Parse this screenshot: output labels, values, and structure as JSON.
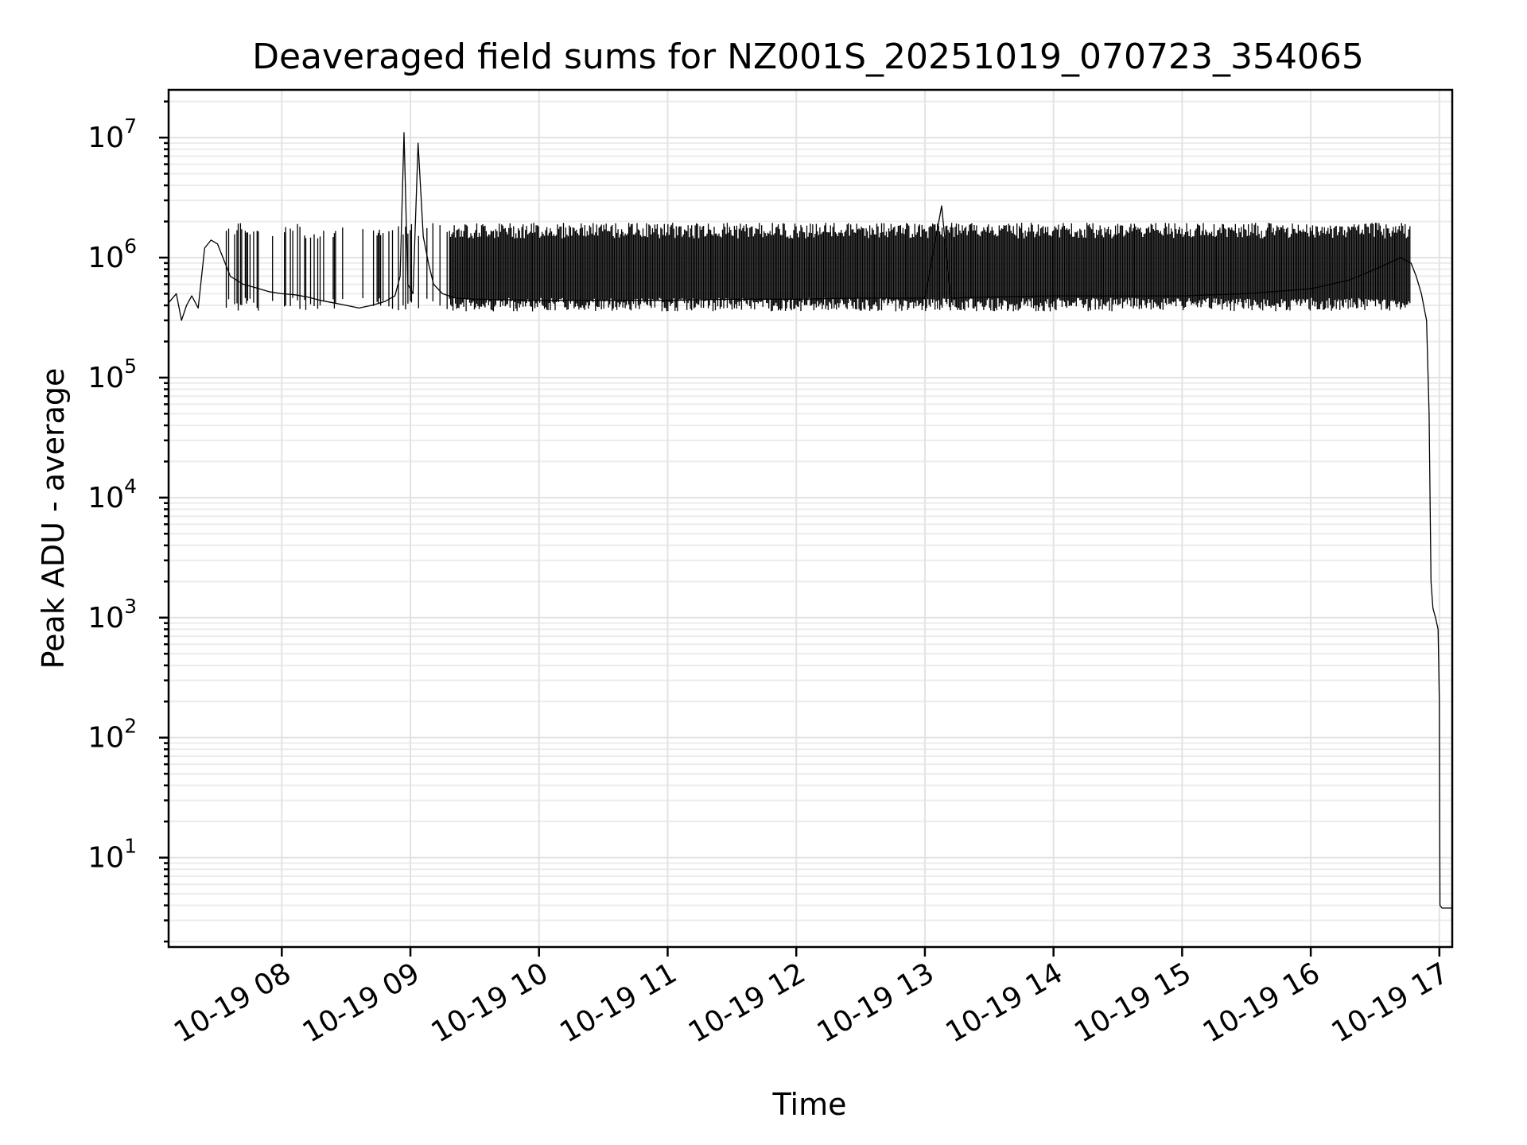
{
  "chart_data": {
    "type": "line",
    "title": "Deaveraged field sums for NZ001S_20251019_070723_354065",
    "xlabel": "Time",
    "ylabel": "Peak ADU - average",
    "yscale": "log",
    "ylim": [
      1.8,
      25000000
    ],
    "xlim_hours": [
      7.12,
      17.1
    ],
    "grid": true,
    "x_tick_hours": [
      8,
      9,
      10,
      11,
      12,
      13,
      14,
      15,
      16,
      17
    ],
    "x_tick_labels": [
      "10-19 08",
      "10-19 09",
      "10-19 10",
      "10-19 11",
      "10-19 12",
      "10-19 13",
      "10-19 14",
      "10-19 15",
      "10-19 16",
      "10-19 17"
    ],
    "y_ticks": [
      {
        "value": 10,
        "base": "10",
        "exp": "1"
      },
      {
        "value": 100,
        "base": "10",
        "exp": "2"
      },
      {
        "value": 1000,
        "base": "10",
        "exp": "3"
      },
      {
        "value": 10000,
        "base": "10",
        "exp": "4"
      },
      {
        "value": 100000,
        "base": "10",
        "exp": "5"
      },
      {
        "value": 1000000,
        "base": "10",
        "exp": "6"
      },
      {
        "value": 10000000,
        "base": "10",
        "exp": "7"
      }
    ],
    "series": [
      {
        "name": "Peak ADU - average",
        "color": "#000000",
        "x_hours": [
          7.12,
          7.18,
          7.22,
          7.26,
          7.3,
          7.35,
          7.4,
          7.45,
          7.5,
          7.6,
          7.7,
          7.8,
          7.9,
          8.0,
          8.1,
          8.2,
          8.3,
          8.4,
          8.5,
          8.6,
          8.7,
          8.8,
          8.88,
          8.92,
          8.95,
          8.98,
          9.02,
          9.06,
          9.1,
          9.14,
          9.18,
          9.25,
          9.35,
          9.5,
          10.0,
          10.5,
          11.0,
          11.5,
          12.0,
          12.5,
          13.0,
          13.13,
          13.2,
          13.5,
          14.0,
          14.5,
          15.0,
          15.5,
          16.0,
          16.3,
          16.5,
          16.7,
          16.78,
          16.82,
          16.86,
          16.9,
          16.92,
          16.935,
          16.95,
          16.97,
          16.99,
          17.0,
          17.005,
          17.02,
          17.1
        ],
        "values": [
          420000,
          500000,
          300000,
          400000,
          480000,
          380000,
          1200000,
          1400000,
          1300000,
          700000,
          600000,
          560000,
          520000,
          500000,
          490000,
          470000,
          440000,
          420000,
          400000,
          380000,
          400000,
          430000,
          480000,
          700000,
          11000000,
          600000,
          500000,
          9000000,
          1500000,
          900000,
          600000,
          500000,
          460000,
          450000,
          440000,
          440000,
          440000,
          450000,
          450000,
          460000,
          460000,
          2700000,
          460000,
          470000,
          480000,
          480000,
          480000,
          500000,
          550000,
          650000,
          800000,
          1000000,
          900000,
          700000,
          500000,
          300000,
          50000,
          2000,
          1200,
          1000,
          800,
          200,
          4,
          3.8,
          3.8
        ]
      }
    ],
    "spikes": {
      "x_range_hours": [
        7.55,
        16.78
      ],
      "approx_count": 1000,
      "floor": 420000,
      "peak_typical": 1700000
    }
  }
}
